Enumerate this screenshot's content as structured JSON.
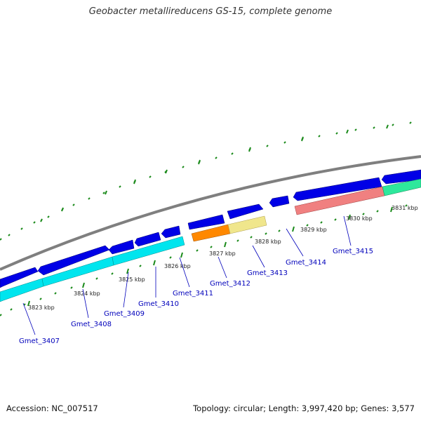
{
  "title": "Geobacter metallireducens GS-15, complete genome",
  "footer": {
    "accession": "Accession: NC_007517",
    "summary": "Topology: circular; Length: 3,997,420 bp; Genes: 3,577"
  },
  "colors": {
    "backbone": "#7f7f7f",
    "forward_gene": "#0000e6",
    "reverse_gene_cyan": "#00e5ee",
    "orange": "#ff8800",
    "khaki": "#f0e68c",
    "salmon": "#f08080",
    "seagreen": "#2ee89c",
    "tick": "#1a8a1a",
    "label_text": "#0000bb"
  },
  "kbp_labels": [
    "3823 kbp",
    "3824 kbp",
    "3825 kbp",
    "3826 kbp",
    "3827 kbp",
    "3828 kbp",
    "3829 kbp",
    "3830 kbp",
    "3831 kbp"
  ],
  "gene_labels": [
    "Gmet_3407",
    "Gmet_3408",
    "Gmet_3409",
    "Gmet_3410",
    "Gmet_3411",
    "Gmet_3412",
    "Gmet_3413",
    "Gmet_3414",
    "Gmet_3415"
  ]
}
